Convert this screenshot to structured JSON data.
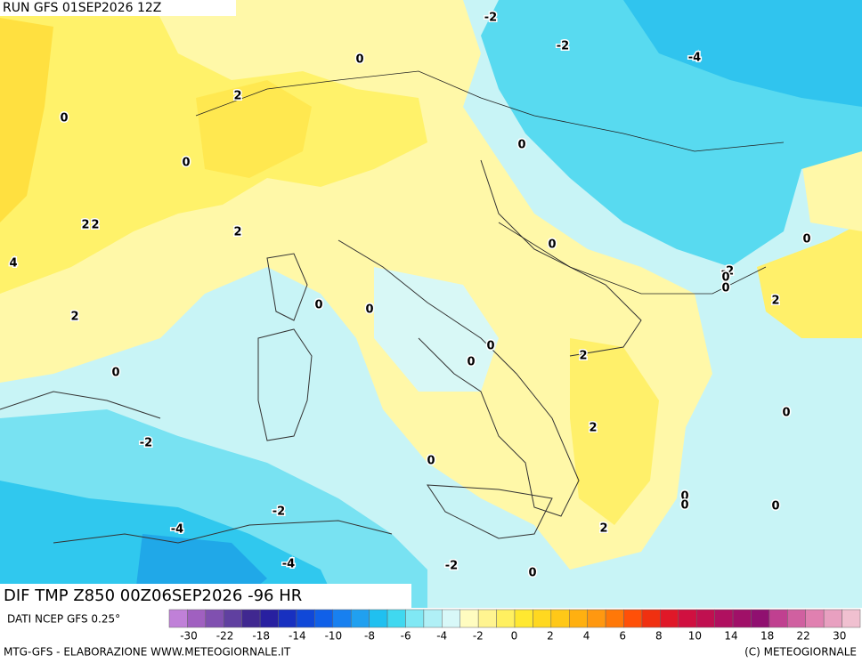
{
  "header": {
    "run": "RUN GFS 01SEP2026 12Z",
    "field": "DIF TMP Z850 00Z06SEP2026 -96 HR",
    "source": "DATI NCEP GFS 0.25°"
  },
  "contour_labels": [
    "-2",
    "-2",
    "-4",
    "0",
    "2",
    "0",
    "0",
    "0",
    "2",
    "2",
    "2",
    "0",
    "0",
    "4",
    "-2",
    "0",
    "0",
    "2",
    "0",
    "0",
    "2",
    "0",
    "0",
    "2",
    "0",
    "0",
    "2",
    "-2",
    "0",
    "0",
    "0",
    "0",
    "-2",
    "-4",
    "2",
    "-4",
    "-2",
    "0"
  ],
  "scale": {
    "labels": [
      -30,
      -22,
      -18,
      -14,
      -10,
      -8,
      -6,
      -4,
      -2,
      0,
      2,
      4,
      6,
      8,
      10,
      14,
      18,
      22,
      30
    ],
    "colors": [
      "#c080d8",
      "#a060c0",
      "#8050b0",
      "#6040a0",
      "#402890",
      "#2820a0",
      "#1830c0",
      "#1048d8",
      "#1060e8",
      "#1880f0",
      "#20a0f0",
      "#20c0f0",
      "#40d8f0",
      "#80e8f4",
      "#b0f0f6",
      "#d8f8f8",
      "#fffcc0",
      "#fff490",
      "#fff060",
      "#ffe830",
      "#ffd820",
      "#ffc818",
      "#ffb010",
      "#ff9810",
      "#ff7808",
      "#ff5008",
      "#f03010",
      "#e01828",
      "#d01040",
      "#c01050",
      "#b01060",
      "#a01068",
      "#901070",
      "#c04090",
      "#d060a0",
      "#e080b0",
      "#e8a0c0",
      "#f0c0d0"
    ]
  },
  "footer": {
    "left": "MTG-GFS - ELABORAZIONE WWW.METEOGIORNALE.IT",
    "right": "(C) METEOGIORNALE"
  }
}
